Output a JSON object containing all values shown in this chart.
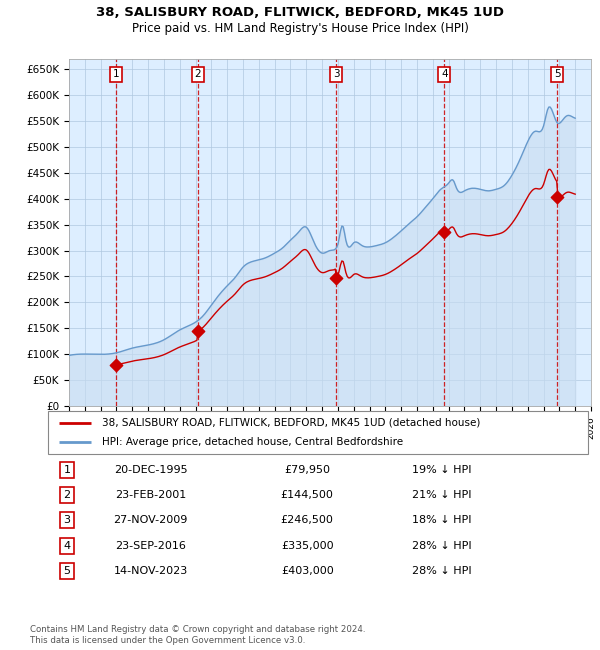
{
  "title1": "38, SALISBURY ROAD, FLITWICK, BEDFORD, MK45 1UD",
  "title2": "Price paid vs. HM Land Registry's House Price Index (HPI)",
  "footer": "Contains HM Land Registry data © Crown copyright and database right 2024.\nThis data is licensed under the Open Government Licence v3.0.",
  "legend_line1": "38, SALISBURY ROAD, FLITWICK, BEDFORD, MK45 1UD (detached house)",
  "legend_line2": "HPI: Average price, detached house, Central Bedfordshire",
  "sales": [
    {
      "num": 1,
      "date_label": "20-DEC-1995",
      "date_x": 1995.97,
      "price": 79950,
      "pct": "19% ↓ HPI"
    },
    {
      "num": 2,
      "date_label": "23-FEB-2001",
      "date_x": 2001.14,
      "price": 144500,
      "pct": "21% ↓ HPI"
    },
    {
      "num": 3,
      "date_label": "27-NOV-2009",
      "date_x": 2009.9,
      "price": 246500,
      "pct": "18% ↓ HPI"
    },
    {
      "num": 4,
      "date_label": "23-SEP-2016",
      "date_x": 2016.73,
      "price": 335000,
      "pct": "28% ↓ HPI"
    },
    {
      "num": 5,
      "date_label": "14-NOV-2023",
      "date_x": 2023.87,
      "price": 403000,
      "pct": "28% ↓ HPI"
    }
  ],
  "price_color": "#cc0000",
  "hpi_color": "#6699cc",
  "hpi_fill_color": "#ddeeff",
  "box_color": "#cc0000",
  "ylim": [
    0,
    670000
  ],
  "xlim": [
    1993,
    2026
  ],
  "yticks": [
    0,
    50000,
    100000,
    150000,
    200000,
    250000,
    300000,
    350000,
    400000,
    450000,
    500000,
    550000,
    600000,
    650000
  ]
}
